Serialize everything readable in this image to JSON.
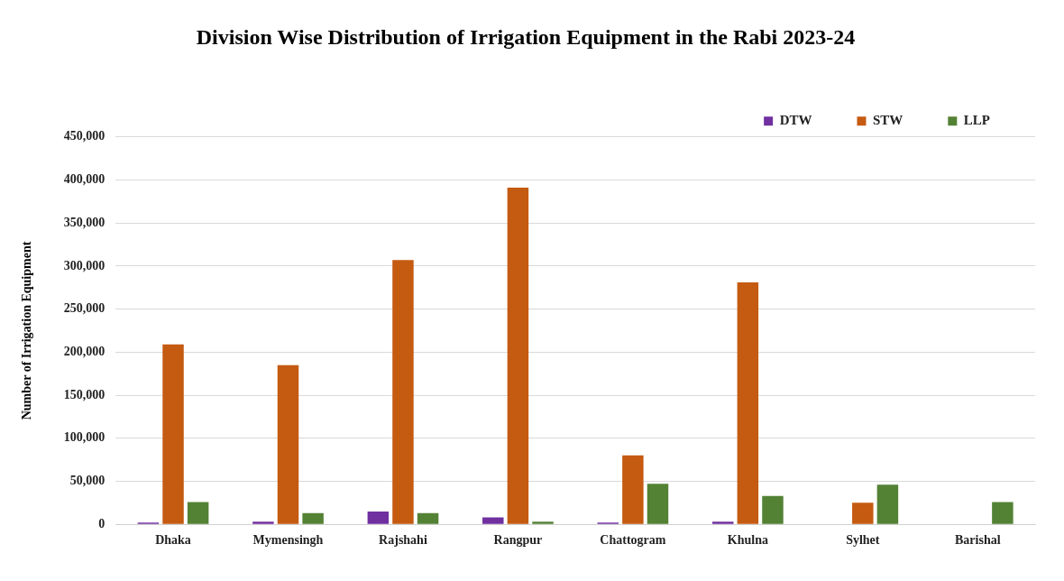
{
  "chart_data": {
    "type": "bar",
    "title": "Division Wise Distribution of Irrigation Equipment in the Rabi 2023-24",
    "ylabel": "Number of Irrigation Equipment",
    "categories": [
      "Dhaka",
      "Mymensingh",
      "Rajshahi",
      "Rangpur",
      "Chattogram",
      "Khulna",
      "Sylhet",
      "Barishal"
    ],
    "series": [
      {
        "name": "DTW",
        "color": "#7030a0",
        "values": [
          2000,
          3000,
          15000,
          8000,
          2000,
          3000,
          0,
          0
        ]
      },
      {
        "name": "STW",
        "color": "#c55a11",
        "values": [
          209000,
          185000,
          307000,
          391000,
          80000,
          281000,
          25000,
          0
        ]
      },
      {
        "name": "LLP",
        "color": "#548235",
        "values": [
          26000,
          13000,
          13000,
          3000,
          47000,
          33000,
          46000,
          26000
        ]
      }
    ],
    "ylim": [
      0,
      450000
    ],
    "yticks": [
      0,
      {
        "value": 50000,
        "label": "50,000"
      },
      {
        "value": 100000,
        "label": "100,000"
      },
      {
        "value": 150000,
        "label": "150,000"
      },
      {
        "value": 200000,
        "label": "200,000"
      },
      {
        "value": 250000,
        "label": "250,000"
      },
      {
        "value": 300000,
        "label": "300,000"
      },
      {
        "value": 350000,
        "label": "350,000"
      },
      {
        "value": 400000,
        "label": "400,000"
      },
      {
        "value": 450000,
        "label": "450,000"
      }
    ],
    "grid": "y",
    "legend": "top right"
  }
}
